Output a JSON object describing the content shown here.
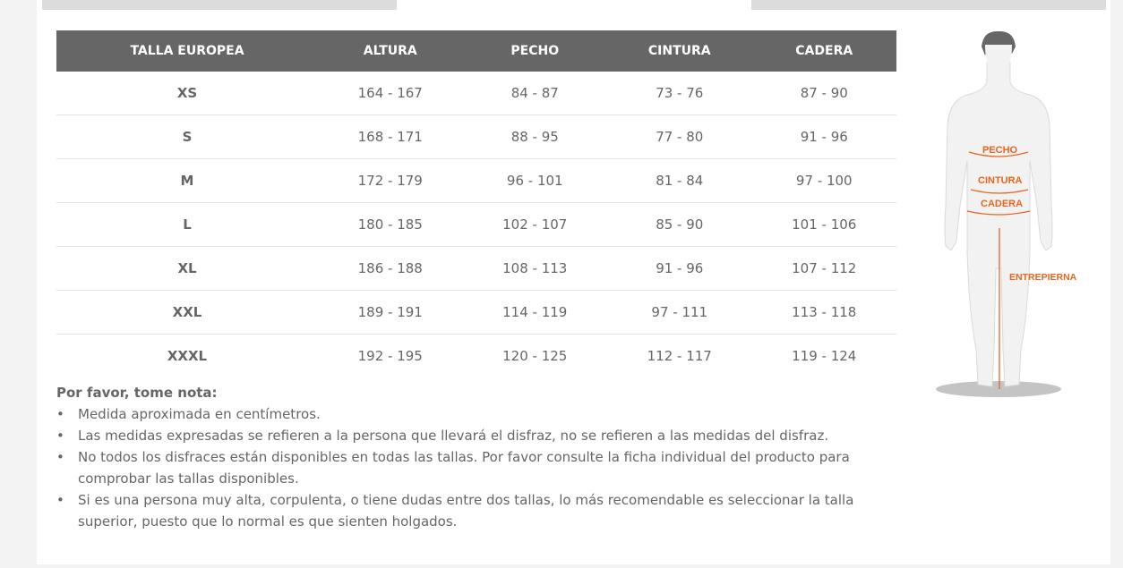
{
  "table": {
    "headers": [
      "TALLA EUROPEA",
      "ALTURA",
      "PECHO",
      "CINTURA",
      "CADERA"
    ],
    "rows": [
      [
        "XS",
        "164 - 167",
        "84 - 87",
        "73 - 76",
        "87 - 90"
      ],
      [
        "S",
        "168 - 171",
        "88 - 95",
        "77 - 80",
        "91 - 96"
      ],
      [
        "M",
        "172 - 179",
        "96 - 101",
        "81 - 84",
        "97 - 100"
      ],
      [
        "L",
        "180 - 185",
        "102 - 107",
        "85 - 90",
        "101 - 106"
      ],
      [
        "XL",
        "186 - 188",
        "108 - 113",
        "91 - 96",
        "107 - 112"
      ],
      [
        "XXL",
        "189 - 191",
        "114 - 119",
        "97 - 111",
        "113 - 118"
      ],
      [
        "XXXL",
        "192 - 195",
        "120 - 125",
        "112 - 117",
        "119 - 124"
      ]
    ]
  },
  "notes": {
    "title": "Por favor, tome nota:",
    "items": [
      "Medida aproximada en centímetros.",
      "Las medidas expresadas se refieren a la persona que llevará el disfraz, no se refieren a las medidas del disfraz.",
      "No todos los disfraces están disponibles en todas las tallas. Por favor consulte la ficha individual del producto para comprobar las tallas disponibles.",
      "Si es una persona muy alta, corpulenta, o tiene dudas entre dos tallas, lo más recomendable es seleccionar la talla superior, puesto que lo normal es que sienten holgados."
    ]
  },
  "figure": {
    "labels": {
      "chest": "PECHO",
      "waist": "CINTURA",
      "hip": "CADERA",
      "inseam": "ENTREPIERNA"
    },
    "accent": "#e8661e"
  },
  "colors": {
    "header_bg": "#666666",
    "tab_bg": "#dcdcdc"
  }
}
